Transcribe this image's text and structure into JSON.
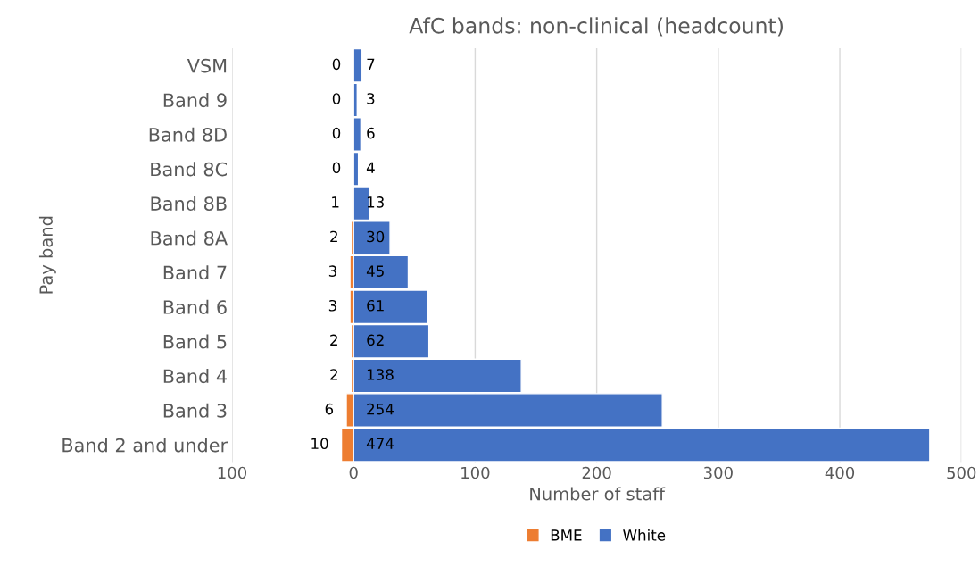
{
  "chart_data": {
    "type": "bar",
    "orientation": "horizontal",
    "title": "AfC bands: non-clinical (headcount)",
    "xlabel": "Number of staff",
    "ylabel": "Pay band",
    "categories": [
      "VSM",
      "Band 9",
      "Band 8D",
      "Band 8C",
      "Band 8B",
      "Band 8A",
      "Band 7",
      "Band 6",
      "Band 5",
      "Band 4",
      "Band 3",
      "Band 2 and under"
    ],
    "series": [
      {
        "name": "BME",
        "color": "#ed7d31",
        "values": [
          0,
          0,
          0,
          0,
          1,
          2,
          3,
          3,
          2,
          2,
          6,
          10
        ],
        "base": [
          null,
          null,
          null,
          null,
          -1,
          -2,
          -3,
          -3,
          -2,
          -2,
          -6,
          -10
        ]
      },
      {
        "name": "White",
        "color": "#4472c4",
        "values": [
          7,
          3,
          6,
          4,
          13,
          30,
          45,
          61,
          62,
          138,
          254,
          474
        ]
      }
    ],
    "xlim": [
      -100,
      500
    ],
    "xticks": [
      {
        "value": -100,
        "label": "100"
      },
      0,
      100,
      200,
      300,
      400,
      500
    ],
    "grid": "x",
    "legend": "bottom",
    "data_labels": true
  }
}
